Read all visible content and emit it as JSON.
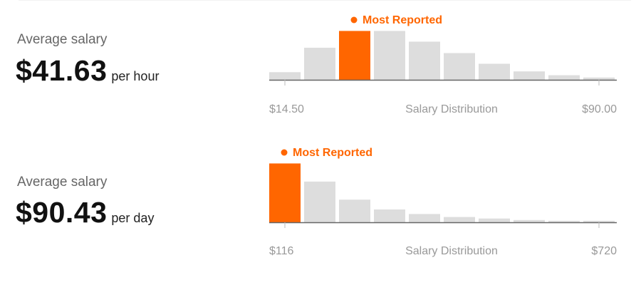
{
  "colors": {
    "highlight": "#ff6600",
    "bar": "#dddddd",
    "axis": "#666666",
    "muted_text": "#999999"
  },
  "icons": {
    "most_reported_marker": "orange-dot-icon"
  },
  "panels": [
    {
      "label": "Average salary",
      "amount": "$41.63",
      "period": "per hour"
    },
    {
      "label": "Average salary",
      "amount": "$90.43",
      "period": "per day"
    }
  ],
  "chart_data": [
    {
      "type": "bar",
      "title": "",
      "xlabel": "Salary Distribution",
      "ylabel": "",
      "tick_labels": [
        "$14.50",
        "$90.00"
      ],
      "values": [
        10,
        42,
        64,
        64,
        50,
        35,
        21,
        11,
        6,
        3
      ],
      "highlight_index": 2,
      "highlight_label": "Most Reported",
      "ylim": [
        0,
        70
      ],
      "grid": false,
      "legend": "none"
    },
    {
      "type": "bar",
      "title": "",
      "xlabel": "Salary Distribution",
      "ylabel": "",
      "tick_labels": [
        "$116",
        "$720"
      ],
      "values": [
        78,
        54,
        30,
        17,
        11,
        7,
        5,
        3,
        2,
        2
      ],
      "highlight_index": 0,
      "highlight_label": "Most Reported",
      "ylim": [
        0,
        85
      ],
      "grid": false,
      "legend": "none"
    }
  ]
}
